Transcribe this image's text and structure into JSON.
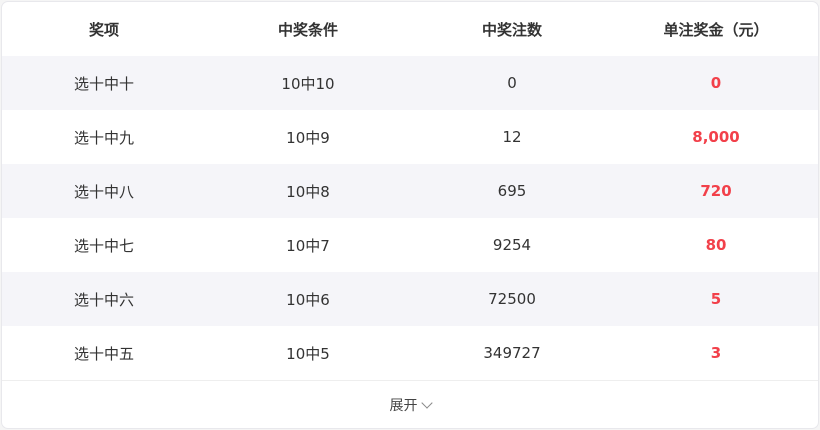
{
  "table": {
    "headers": [
      "奖项",
      "中奖条件",
      "中奖注数",
      "单注奖金（元）"
    ],
    "rows": [
      [
        "选十中十",
        "10中10",
        "0",
        "0"
      ],
      [
        "选十中九",
        "10中9",
        "12",
        "8,000"
      ],
      [
        "选十中八",
        "10中8",
        "695",
        "720"
      ],
      [
        "选十中七",
        "10中7",
        "9254",
        "80"
      ],
      [
        "选十中六",
        "10中6",
        "72500",
        "5"
      ],
      [
        "选十中五",
        "10中5",
        "349727",
        "3"
      ]
    ]
  },
  "footer": {
    "expand_label": "展开",
    "icon": "chevron-down-icon"
  },
  "colors": {
    "prize": "#f2404a",
    "alt_row": "#f5f5f9"
  }
}
